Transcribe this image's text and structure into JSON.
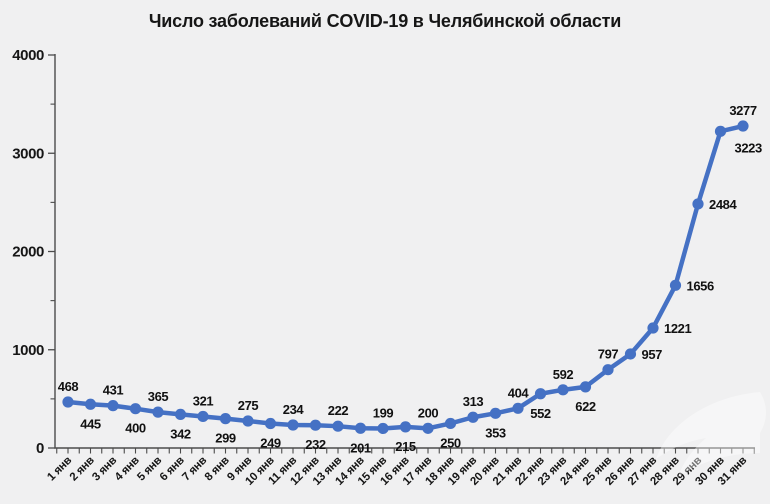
{
  "page": {
    "background": "#f0f0f1"
  },
  "chart_data": {
    "type": "line",
    "title": "Число заболеваний COVID-19 в Челябинской области",
    "series_name": "Число заболеваний",
    "categories": [
      "1 янв",
      "2 янв",
      "3 янв",
      "4 янв",
      "5 янв",
      "6 янв",
      "7 янв",
      "8 янв",
      "9 янв",
      "10 янв",
      "11 янв",
      "12 янв",
      "13 янв",
      "14 янв",
      "15 янв",
      "16 янв",
      "17 янв",
      "18 янв",
      "19 янв",
      "20 янв",
      "21 янв",
      "22 янв",
      "23 янв",
      "24 янв",
      "25 янв",
      "26 янв",
      "27 янв",
      "28 янв",
      "29 янв",
      "30 янв",
      "31 янв"
    ],
    "values": [
      468,
      445,
      431,
      400,
      365,
      342,
      321,
      299,
      275,
      249,
      234,
      232,
      222,
      201,
      199,
      215,
      200,
      250,
      313,
      353,
      404,
      552,
      592,
      622,
      797,
      957,
      1221,
      1656,
      2484,
      3223,
      3277
    ],
    "label_positions": [
      "above",
      "below",
      "above",
      "below",
      "above",
      "below",
      "above",
      "below",
      "above",
      "below",
      "above",
      "below",
      "above",
      "below",
      "above",
      "below",
      "above",
      "below",
      "above",
      "below",
      "above",
      "below",
      "above",
      "below",
      "above",
      "right",
      "right",
      "right",
      "right",
      "below-right",
      "above"
    ],
    "ylim": [
      0,
      4000
    ],
    "yticks": [
      0,
      1000,
      2000,
      3000,
      4000
    ],
    "y_minor_ticks": [
      500,
      1500,
      2500,
      3500
    ],
    "xlabel": "",
    "ylabel": "",
    "grid": false,
    "legend": "none",
    "line_color": "#4571c4",
    "marker_color": "#4571c4",
    "axis_color": "#4c4c4c",
    "text_color": "#161616"
  },
  "watermark": {
    "icon": "faint-bird-logo",
    "color": "#ffffff"
  }
}
